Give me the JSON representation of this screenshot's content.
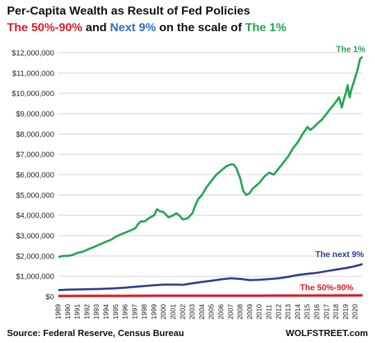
{
  "title": "Per-Capita  Wealth as Result of Fed Policies",
  "subtitle": {
    "part1": "The 50%-90%",
    "part2": " and ",
    "part3": "Next 9%",
    "part4": " on the scale of ",
    "part5": "The 1%"
  },
  "colors": {
    "top1": "#21a652",
    "next9": "#2e3f8f",
    "p50_90": "#e01b24",
    "subtitle_next9": "#2a6fc4",
    "grid": "#d0d0d0",
    "text": "#111111"
  },
  "source": "Source: Federal Reserve, Census Bureau",
  "brand": "WOLFSTREET.com",
  "chart_data": {
    "type": "line",
    "grid": "horizontal",
    "ylim": [
      0,
      12000000
    ],
    "yticks": [
      0,
      1000000,
      2000000,
      3000000,
      4000000,
      5000000,
      6000000,
      7000000,
      8000000,
      9000000,
      10000000,
      11000000,
      12000000
    ],
    "ytick_labels": [
      "$0",
      "$1,000,000",
      "$2,000,000",
      "$3,000,000",
      "$4,000,000",
      "$5,000,000",
      "$6,000,000",
      "$7,000,000",
      "$8,000,000",
      "$9,000,000",
      "$10,000,000",
      "$11,000,000",
      "$12,000,000"
    ],
    "xlim": [
      1989,
      2020.75
    ],
    "xtick_labels": [
      "1989",
      "1990",
      "1991",
      "1992",
      "1993",
      "1994",
      "1995",
      "1996",
      "1997",
      "1998",
      "1999",
      "2000",
      "2001",
      "2002",
      "2003",
      "2004",
      "2005",
      "2006",
      "2007",
      "2008",
      "2009",
      "2010",
      "2011",
      "2012",
      "2013",
      "2014",
      "2015",
      "2016",
      "2017",
      "2018",
      "2019",
      "2020"
    ],
    "series": [
      {
        "name": "The 1%",
        "color": "#21a652",
        "x": [
          1989,
          1989.5,
          1990,
          1990.5,
          1991,
          1991.5,
          1992,
          1992.5,
          1993,
          1993.5,
          1994,
          1994.5,
          1995,
          1995.5,
          1996,
          1996.5,
          1997,
          1997.3,
          1997.6,
          1998,
          1998.3,
          1998.6,
          1999,
          1999.3,
          1999.6,
          2000,
          2000.5,
          2001,
          2001.3,
          2001.6,
          2002,
          2002.5,
          2003,
          2003.3,
          2003.6,
          2004,
          2004.5,
          2005,
          2005.5,
          2006,
          2006.5,
          2007,
          2007.3,
          2007.6,
          2008,
          2008.3,
          2008.6,
          2009,
          2009.25,
          2009.5,
          2010,
          2010.5,
          2011,
          2011.5,
          2012,
          2012.5,
          2013,
          2013.5,
          2014,
          2014.5,
          2015,
          2015.3,
          2015.6,
          2016,
          2016.5,
          2017,
          2017.5,
          2018,
          2018.3,
          2018.6,
          2018.8,
          2019,
          2019.2,
          2019.4,
          2019.6,
          2019.8,
          2020,
          2020.25,
          2020.5,
          2020.75
        ],
        "values": [
          1950000,
          2000000,
          2000000,
          2050000,
          2150000,
          2200000,
          2300000,
          2400000,
          2500000,
          2600000,
          2700000,
          2800000,
          2950000,
          3050000,
          3150000,
          3250000,
          3350000,
          3550000,
          3700000,
          3700000,
          3800000,
          3900000,
          4000000,
          4300000,
          4200000,
          4150000,
          3900000,
          4000000,
          4100000,
          4000000,
          3800000,
          3850000,
          4100000,
          4500000,
          4800000,
          5000000,
          5400000,
          5700000,
          6000000,
          6200000,
          6400000,
          6500000,
          6500000,
          6300000,
          5800000,
          5200000,
          5000000,
          5100000,
          5300000,
          5400000,
          5600000,
          5900000,
          6100000,
          6000000,
          6300000,
          6600000,
          6900000,
          7300000,
          7600000,
          8000000,
          8350000,
          8200000,
          8300000,
          8500000,
          8700000,
          9000000,
          9300000,
          9600000,
          9800000,
          9300000,
          9700000,
          10000000,
          10400000,
          9800000,
          10200000,
          10500000,
          10800000,
          11200000,
          11700000,
          11800000
        ],
        "label": "The 1%"
      },
      {
        "name": "The next 9%",
        "color": "#2e3f8f",
        "x": [
          1989,
          1990,
          1991,
          1992,
          1993,
          1994,
          1995,
          1996,
          1997,
          1998,
          1999,
          2000,
          2001,
          2002,
          2003,
          2004,
          2005,
          2006,
          2007,
          2008,
          2009,
          2010,
          2011,
          2012,
          2013,
          2014,
          2015,
          2016,
          2017,
          2018,
          2019,
          2019.5,
          2020,
          2020.5,
          2020.75
        ],
        "values": [
          320000,
          340000,
          350000,
          360000,
          370000,
          390000,
          410000,
          440000,
          480000,
          520000,
          560000,
          590000,
          590000,
          580000,
          650000,
          720000,
          780000,
          850000,
          900000,
          870000,
          810000,
          830000,
          860000,
          900000,
          970000,
          1060000,
          1120000,
          1170000,
          1250000,
          1330000,
          1400000,
          1450000,
          1500000,
          1560000,
          1600000
        ],
        "label": "The next 9%"
      },
      {
        "name": "The 50%-90%",
        "color": "#e01b24",
        "x": [
          1989,
          1995,
          2000,
          2005,
          2010,
          2015,
          2020,
          2020.75
        ],
        "values": [
          30000,
          35000,
          40000,
          45000,
          45000,
          50000,
          60000,
          65000
        ],
        "label": "The 50%-90%"
      }
    ]
  }
}
